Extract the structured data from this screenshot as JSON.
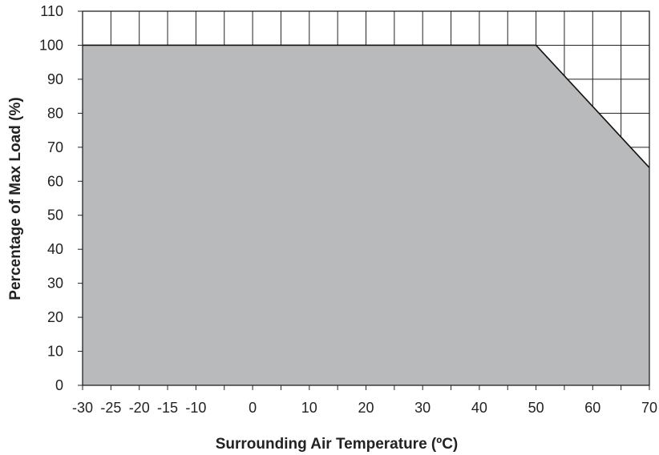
{
  "chart_data": {
    "type": "area",
    "title": "",
    "xlabel": "Surrounding Air Temperature (ºC)",
    "ylabel": "Percentage of Max Load (%)",
    "xlim": [
      -30,
      70
    ],
    "ylim": [
      0,
      110
    ],
    "x_ticks": [
      "-30",
      "-25",
      "-20",
      "-15",
      "-10",
      "0",
      "10",
      "20",
      "30",
      "40",
      "50",
      "60",
      "70"
    ],
    "y_ticks": [
      "0",
      "10",
      "20",
      "30",
      "40",
      "50",
      "60",
      "70",
      "80",
      "90",
      "100",
      "110"
    ],
    "grid": true,
    "fill_color": "#b9babc",
    "line_color": "#111111",
    "x": [
      -30,
      50,
      70
    ],
    "y": [
      100,
      100,
      64
    ]
  }
}
